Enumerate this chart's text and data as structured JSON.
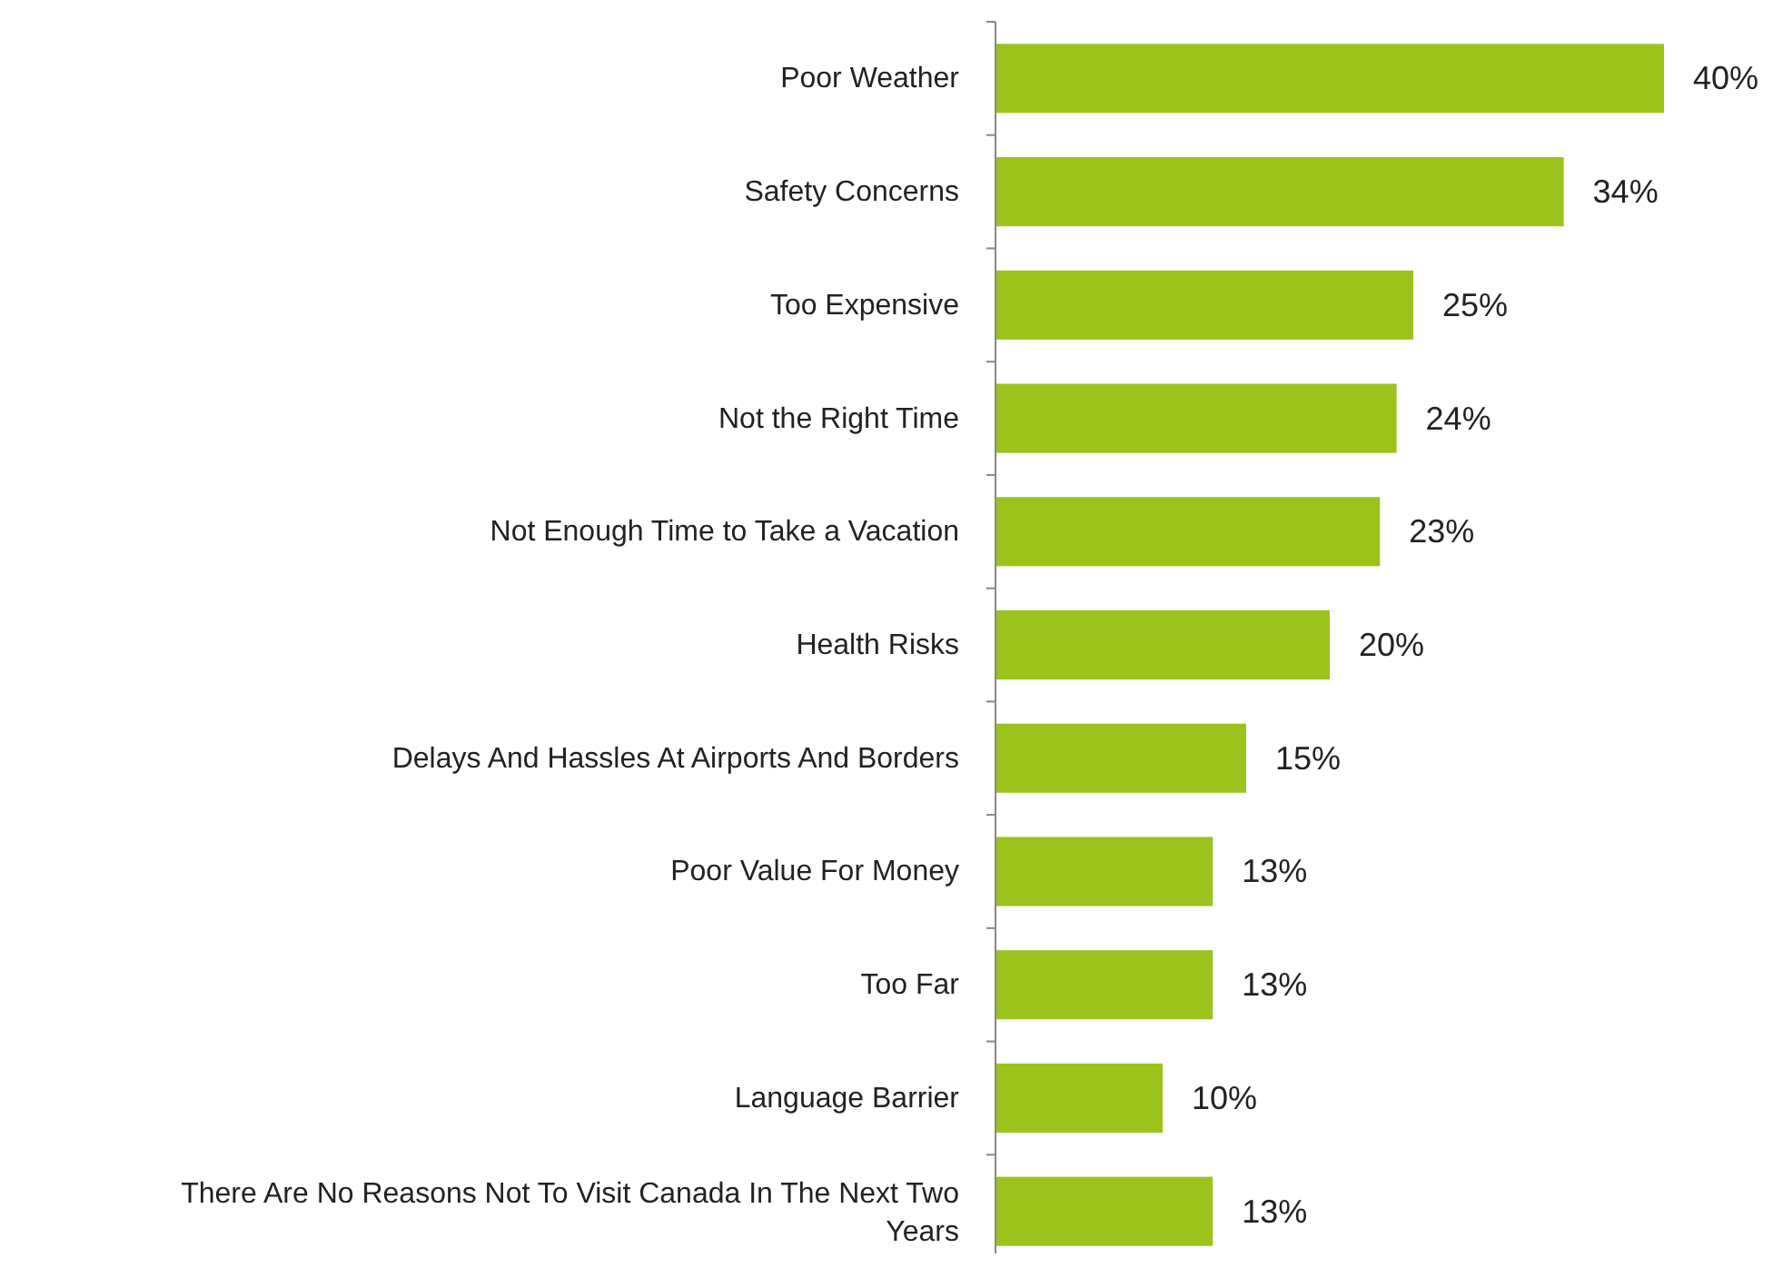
{
  "chart_data": {
    "type": "bar",
    "orientation": "horizontal",
    "categories": [
      "Poor Weather",
      "Safety Concerns",
      "Too Expensive",
      "Not the Right Time",
      "Not Enough Time to Take a Vacation",
      "Health Risks",
      "Delays And Hassles At Airports And Borders",
      "Poor Value For Money",
      "Too Far",
      "Language Barrier",
      "There Are No Reasons Not To Visit Canada In The Next Two Years"
    ],
    "values": [
      40,
      34,
      25,
      24,
      23,
      20,
      15,
      13,
      13,
      10,
      13
    ],
    "value_labels": [
      "40%",
      "34%",
      "25%",
      "24%",
      "23%",
      "20%",
      "15%",
      "13%",
      "13%",
      "10%",
      "13%"
    ],
    "color": "#9bc31c"
  }
}
